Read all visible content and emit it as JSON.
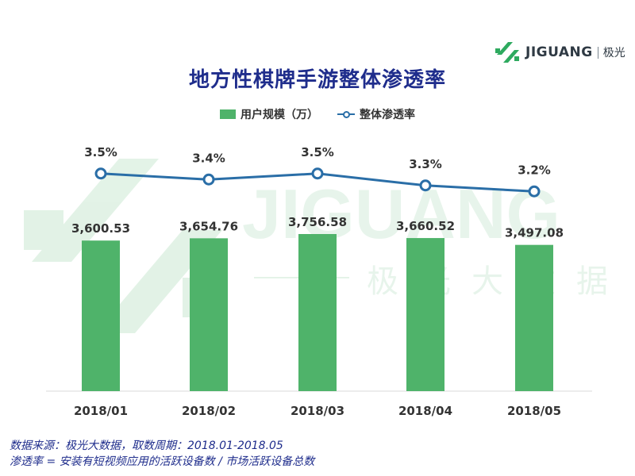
{
  "logo": {
    "word": "JIGUANG",
    "cn": "极光",
    "colors": [
      "#2eaa5f",
      "#2f3a44"
    ]
  },
  "watermark": {
    "word": "JIGUANG",
    "cn": "极光大数据"
  },
  "chart_data": {
    "type": "bar",
    "title": "地方性棋牌手游整体渗透率",
    "categories": [
      "2018/01",
      "2018/02",
      "2018/03",
      "2018/04",
      "2018/05"
    ],
    "series": [
      {
        "name": "用户规模（万）",
        "type": "bar",
        "values": [
          3600.53,
          3654.76,
          3756.58,
          3660.52,
          3497.08
        ],
        "labels": [
          "3,600.53",
          "3,654.76",
          "3,756.58",
          "3,660.52",
          "3,497.08"
        ],
        "color": "#4fb36a"
      },
      {
        "name": "整体渗透率",
        "type": "line",
        "values": [
          3.5,
          3.4,
          3.5,
          3.3,
          3.2
        ],
        "labels": [
          "3.5%",
          "3.4%",
          "3.5%",
          "3.3%",
          "3.2%"
        ],
        "color": "#2a6ea7"
      }
    ],
    "legend": "top",
    "grid": false
  },
  "footnote": {
    "line1": "数据来源：极光大数据，取数周期：2018.01-2018.05",
    "line2": "渗透率 = 安装有短视频应用的活跃设备数 / 市场活跃设备总数"
  }
}
